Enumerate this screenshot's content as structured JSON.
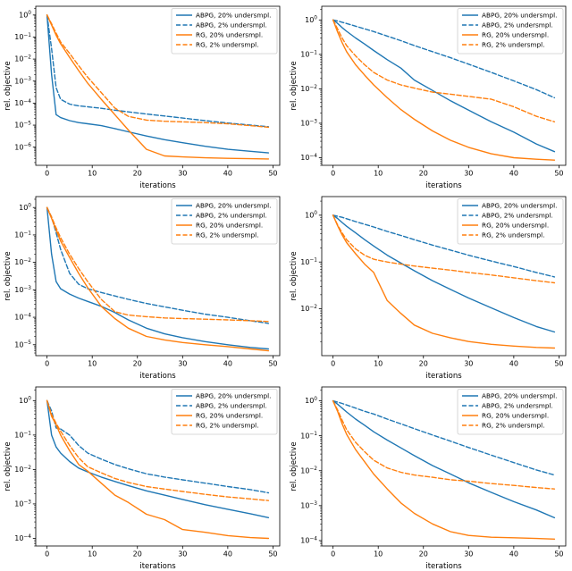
{
  "page": {
    "background": "#ffffff"
  },
  "legend": {
    "labels": [
      "ABPG, 20% undersmpl.",
      "ABPG, 2% undersmpl.",
      "RG, 20% undersmpl.",
      "RG, 2% undersmpl."
    ],
    "position": "upper right"
  },
  "colors": {
    "abpg": "#1f77b4",
    "rg": "#ff7f0e"
  },
  "chart_data": [
    {
      "type": "line",
      "position": "top-left",
      "xlabel": "iterations",
      "ylabel": "rel. objective",
      "xscale": "linear",
      "yscale": "log",
      "xlim": [
        -2.5,
        51.5
      ],
      "ylim": [
        1.5e-07,
        2.5
      ],
      "xticks": [
        0,
        10,
        20,
        30,
        40,
        50
      ],
      "ytick_exponents": [
        0,
        -1,
        -2,
        -3,
        -4,
        -5,
        -6
      ],
      "legend_position": "upper right",
      "x": [
        0,
        1,
        2,
        3,
        5,
        7,
        9,
        12,
        15,
        18,
        22,
        26,
        30,
        35,
        40,
        45,
        49
      ],
      "series": [
        {
          "name": "ABPG, 20% undersmpl.",
          "color": "#1f77b4",
          "style": "solid",
          "y": [
            1,
            0.002,
            3e-05,
            2.2e-05,
            1.6e-05,
            1.3e-05,
            1.15e-05,
            9.5e-06,
            7e-06,
            5e-06,
            3.2e-06,
            2.2e-06,
            1.6e-06,
            1.1e-06,
            8e-07,
            6.5e-07,
            5.5e-07
          ]
        },
        {
          "name": "ABPG, 2% undersmpl.",
          "color": "#1f77b4",
          "style": "dashed",
          "y": [
            1,
            0.03,
            0.0005,
            0.00015,
            9e-05,
            7.5e-05,
            6.8e-05,
            5.8e-05,
            4.8e-05,
            4e-05,
            3.2e-05,
            2.6e-05,
            2.1e-05,
            1.6e-05,
            1.25e-05,
            1e-05,
            8.5e-06
          ]
        },
        {
          "name": "RG, 20% undersmpl.",
          "color": "#ff7f0e",
          "style": "solid",
          "y": [
            1,
            0.35,
            0.12,
            0.05,
            0.012,
            0.003,
            0.0008,
            0.00015,
            3e-05,
            6e-06,
            8e-07,
            4e-07,
            3.6e-07,
            3.3e-07,
            3.1e-07,
            3e-07,
            2.9e-07
          ]
        },
        {
          "name": "RG, 2% undersmpl.",
          "color": "#ff7f0e",
          "style": "dashed",
          "y": [
            1,
            0.4,
            0.15,
            0.06,
            0.018,
            0.005,
            0.0015,
            0.0003,
            6e-05,
            2.5e-05,
            1.7e-05,
            1.5e-05,
            1.4e-05,
            1.3e-05,
            1.15e-05,
            9.5e-06,
            8e-06
          ]
        }
      ]
    },
    {
      "type": "line",
      "position": "top-right",
      "xlabel": "iterations",
      "ylabel": "rel. objective",
      "xscale": "linear",
      "yscale": "log",
      "xlim": [
        -2.5,
        51.5
      ],
      "ylim": [
        6e-05,
        2.5
      ],
      "xticks": [
        0,
        10,
        20,
        30,
        40,
        50
      ],
      "ytick_exponents": [
        0,
        -1,
        -2,
        -3,
        -4
      ],
      "legend_position": "upper right",
      "x": [
        0,
        1,
        2,
        3,
        5,
        7,
        9,
        12,
        15,
        18,
        22,
        26,
        30,
        35,
        40,
        45,
        49
      ],
      "series": [
        {
          "name": "ABPG, 20% undersmpl.",
          "color": "#1f77b4",
          "style": "solid",
          "y": [
            1,
            0.8,
            0.6,
            0.47,
            0.3,
            0.2,
            0.13,
            0.07,
            0.04,
            0.018,
            0.009,
            0.0045,
            0.0024,
            0.0011,
            0.00055,
            0.00025,
            0.00015
          ]
        },
        {
          "name": "ABPG, 2% undersmpl.",
          "color": "#1f77b4",
          "style": "dashed",
          "y": [
            1,
            0.93,
            0.86,
            0.79,
            0.66,
            0.55,
            0.46,
            0.34,
            0.25,
            0.18,
            0.12,
            0.08,
            0.052,
            0.03,
            0.017,
            0.0095,
            0.0055
          ]
        },
        {
          "name": "RG, 20% undersmpl.",
          "color": "#ff7f0e",
          "style": "solid",
          "y": [
            1,
            0.45,
            0.22,
            0.12,
            0.05,
            0.025,
            0.013,
            0.0055,
            0.0025,
            0.0013,
            0.0006,
            0.00032,
            0.0002,
            0.00013,
            0.0001,
            9e-05,
            8.5e-05
          ]
        },
        {
          "name": "RG, 2% undersmpl.",
          "color": "#ff7f0e",
          "style": "dashed",
          "y": [
            1,
            0.55,
            0.3,
            0.18,
            0.09,
            0.05,
            0.03,
            0.018,
            0.013,
            0.0105,
            0.008,
            0.007,
            0.006,
            0.005,
            0.003,
            0.0016,
            0.0011
          ]
        }
      ]
    },
    {
      "type": "line",
      "position": "middle-left",
      "xlabel": "iterations",
      "ylabel": "rel. objective",
      "xscale": "linear",
      "yscale": "log",
      "xlim": [
        -2.5,
        51.5
      ],
      "ylim": [
        4e-06,
        2.5
      ],
      "xticks": [
        0,
        10,
        20,
        30,
        40,
        50
      ],
      "ytick_exponents": [
        0,
        -1,
        -2,
        -3,
        -4,
        -5
      ],
      "legend_position": "upper right",
      "x": [
        0,
        1,
        2,
        3,
        5,
        7,
        9,
        12,
        15,
        18,
        22,
        26,
        30,
        35,
        40,
        45,
        49
      ],
      "series": [
        {
          "name": "ABPG, 20% undersmpl.",
          "color": "#1f77b4",
          "style": "solid",
          "y": [
            1,
            0.02,
            0.002,
            0.0011,
            0.0007,
            0.0005,
            0.00038,
            0.00025,
            0.00015,
            8e-05,
            4e-05,
            2.5e-05,
            1.8e-05,
            1.3e-05,
            1e-05,
            8e-06,
            7e-06
          ]
        },
        {
          "name": "ABPG, 2% undersmpl.",
          "color": "#1f77b4",
          "style": "dashed",
          "y": [
            1,
            0.45,
            0.12,
            0.03,
            0.004,
            0.0016,
            0.0011,
            0.0008,
            0.0006,
            0.00045,
            0.00032,
            0.00024,
            0.00018,
            0.00013,
            0.0001,
            7.5e-05,
            6e-05
          ]
        },
        {
          "name": "RG, 20% undersmpl.",
          "color": "#ff7f0e",
          "style": "solid",
          "y": [
            1,
            0.4,
            0.15,
            0.06,
            0.015,
            0.004,
            0.0012,
            0.00025,
            9e-05,
            4e-05,
            2e-05,
            1.5e-05,
            1.2e-05,
            1e-05,
            8.5e-06,
            7e-06,
            6e-06
          ]
        },
        {
          "name": "RG, 2% undersmpl.",
          "color": "#ff7f0e",
          "style": "dashed",
          "y": [
            1,
            0.45,
            0.18,
            0.08,
            0.02,
            0.006,
            0.002,
            0.00045,
            0.00016,
            0.00012,
            0.000105,
            9.5e-05,
            9e-05,
            8.5e-05,
            8e-05,
            7.5e-05,
            7e-05
          ]
        }
      ]
    },
    {
      "type": "line",
      "position": "middle-right",
      "xlabel": "iterations",
      "ylabel": "rel. objective",
      "xscale": "linear",
      "yscale": "log",
      "xlim": [
        -2.5,
        51.5
      ],
      "ylim": [
        0.001,
        2.5
      ],
      "xticks": [
        0,
        10,
        20,
        30,
        40,
        50
      ],
      "ytick_exponents": [
        0,
        -1,
        -2
      ],
      "legend_position": "upper right",
      "x": [
        0,
        1,
        2,
        3,
        5,
        7,
        9,
        12,
        15,
        18,
        22,
        26,
        30,
        35,
        40,
        45,
        49
      ],
      "series": [
        {
          "name": "ABPG, 20% undersmpl.",
          "color": "#1f77b4",
          "style": "solid",
          "y": [
            1,
            0.85,
            0.7,
            0.58,
            0.42,
            0.3,
            0.22,
            0.14,
            0.095,
            0.065,
            0.04,
            0.026,
            0.017,
            0.0105,
            0.0065,
            0.0042,
            0.0032
          ]
        },
        {
          "name": "ABPG, 2% undersmpl.",
          "color": "#1f77b4",
          "style": "dashed",
          "y": [
            1,
            0.95,
            0.9,
            0.84,
            0.73,
            0.64,
            0.56,
            0.45,
            0.37,
            0.3,
            0.23,
            0.18,
            0.14,
            0.105,
            0.08,
            0.06,
            0.048
          ]
        },
        {
          "name": "RG, 20% undersmpl.",
          "color": "#ff7f0e",
          "style": "solid",
          "y": [
            1,
            0.6,
            0.38,
            0.26,
            0.15,
            0.09,
            0.06,
            0.015,
            0.008,
            0.0045,
            0.003,
            0.0024,
            0.002,
            0.00175,
            0.0016,
            0.0015,
            0.00145
          ]
        },
        {
          "name": "RG, 2% undersmpl.",
          "color": "#ff7f0e",
          "style": "dashed",
          "y": [
            1,
            0.62,
            0.42,
            0.3,
            0.19,
            0.14,
            0.115,
            0.1,
            0.09,
            0.082,
            0.074,
            0.067,
            0.06,
            0.053,
            0.046,
            0.04,
            0.036
          ]
        }
      ]
    },
    {
      "type": "line",
      "position": "bottom-left",
      "xlabel": "iterations",
      "ylabel": "rel. objective",
      "xscale": "linear",
      "yscale": "log",
      "xlim": [
        -2.5,
        51.5
      ],
      "ylim": [
        6e-05,
        2.5
      ],
      "xticks": [
        0,
        10,
        20,
        30,
        40,
        50
      ],
      "ytick_exponents": [
        0,
        -1,
        -2,
        -3,
        -4
      ],
      "legend_position": "upper right",
      "x": [
        0,
        1,
        2,
        3,
        5,
        7,
        9,
        12,
        15,
        18,
        22,
        26,
        30,
        35,
        40,
        45,
        49
      ],
      "series": [
        {
          "name": "ABPG, 20% undersmpl.",
          "color": "#1f77b4",
          "style": "solid",
          "y": [
            1,
            0.1,
            0.045,
            0.03,
            0.017,
            0.011,
            0.0085,
            0.006,
            0.0045,
            0.0034,
            0.0024,
            0.0018,
            0.00135,
            0.00095,
            0.0007,
            0.00052,
            0.0004
          ]
        },
        {
          "name": "ABPG, 2% undersmpl.",
          "color": "#1f77b4",
          "style": "dashed",
          "y": [
            1,
            0.5,
            0.16,
            0.15,
            0.1,
            0.05,
            0.03,
            0.02,
            0.014,
            0.0105,
            0.0075,
            0.006,
            0.005,
            0.004,
            0.0032,
            0.0026,
            0.0021
          ]
        },
        {
          "name": "RG, 20% undersmpl.",
          "color": "#ff7f0e",
          "style": "solid",
          "y": [
            1,
            0.35,
            0.2,
            0.1,
            0.035,
            0.014,
            0.009,
            0.004,
            0.0018,
            0.0011,
            0.0005,
            0.00035,
            0.00018,
            0.00015,
            0.00012,
            0.000105,
            0.0001
          ]
        },
        {
          "name": "RG, 2% undersmpl.",
          "color": "#ff7f0e",
          "style": "dashed",
          "y": [
            1,
            0.4,
            0.22,
            0.13,
            0.05,
            0.022,
            0.012,
            0.008,
            0.0055,
            0.0042,
            0.0032,
            0.0027,
            0.0023,
            0.0019,
            0.0016,
            0.0014,
            0.00125
          ]
        }
      ]
    },
    {
      "type": "line",
      "position": "bottom-right",
      "xlabel": "iterations",
      "ylabel": "rel. objective",
      "xscale": "linear",
      "yscale": "log",
      "xlim": [
        -2.5,
        51.5
      ],
      "ylim": [
        7e-05,
        2.5
      ],
      "xticks": [
        0,
        10,
        20,
        30,
        40,
        50
      ],
      "ytick_exponents": [
        0,
        -1,
        -2,
        -3,
        -4
      ],
      "legend_position": "upper right",
      "x": [
        0,
        1,
        2,
        3,
        5,
        7,
        9,
        12,
        15,
        18,
        22,
        26,
        30,
        35,
        40,
        45,
        49
      ],
      "series": [
        {
          "name": "ABPG, 20% undersmpl.",
          "color": "#1f77b4",
          "style": "solid",
          "y": [
            1,
            0.8,
            0.62,
            0.48,
            0.3,
            0.2,
            0.13,
            0.075,
            0.045,
            0.027,
            0.014,
            0.008,
            0.0045,
            0.0024,
            0.0013,
            0.00075,
            0.00045
          ]
        },
        {
          "name": "ABPG, 2% undersmpl.",
          "color": "#1f77b4",
          "style": "dashed",
          "y": [
            1,
            0.92,
            0.84,
            0.76,
            0.62,
            0.5,
            0.42,
            0.3,
            0.22,
            0.16,
            0.105,
            0.07,
            0.046,
            0.028,
            0.017,
            0.0105,
            0.0075
          ]
        },
        {
          "name": "RG, 20% undersmpl.",
          "color": "#ff7f0e",
          "style": "solid",
          "y": [
            1,
            0.5,
            0.22,
            0.11,
            0.04,
            0.018,
            0.008,
            0.003,
            0.0012,
            0.0006,
            0.0003,
            0.00018,
            0.00014,
            0.000125,
            0.00012,
            0.000115,
            0.00011
          ]
        },
        {
          "name": "RG, 2% undersmpl.",
          "color": "#ff7f0e",
          "style": "dashed",
          "y": [
            1,
            0.55,
            0.28,
            0.15,
            0.065,
            0.035,
            0.02,
            0.012,
            0.009,
            0.0075,
            0.0065,
            0.0055,
            0.005,
            0.0043,
            0.0038,
            0.0033,
            0.003
          ]
        }
      ]
    }
  ]
}
